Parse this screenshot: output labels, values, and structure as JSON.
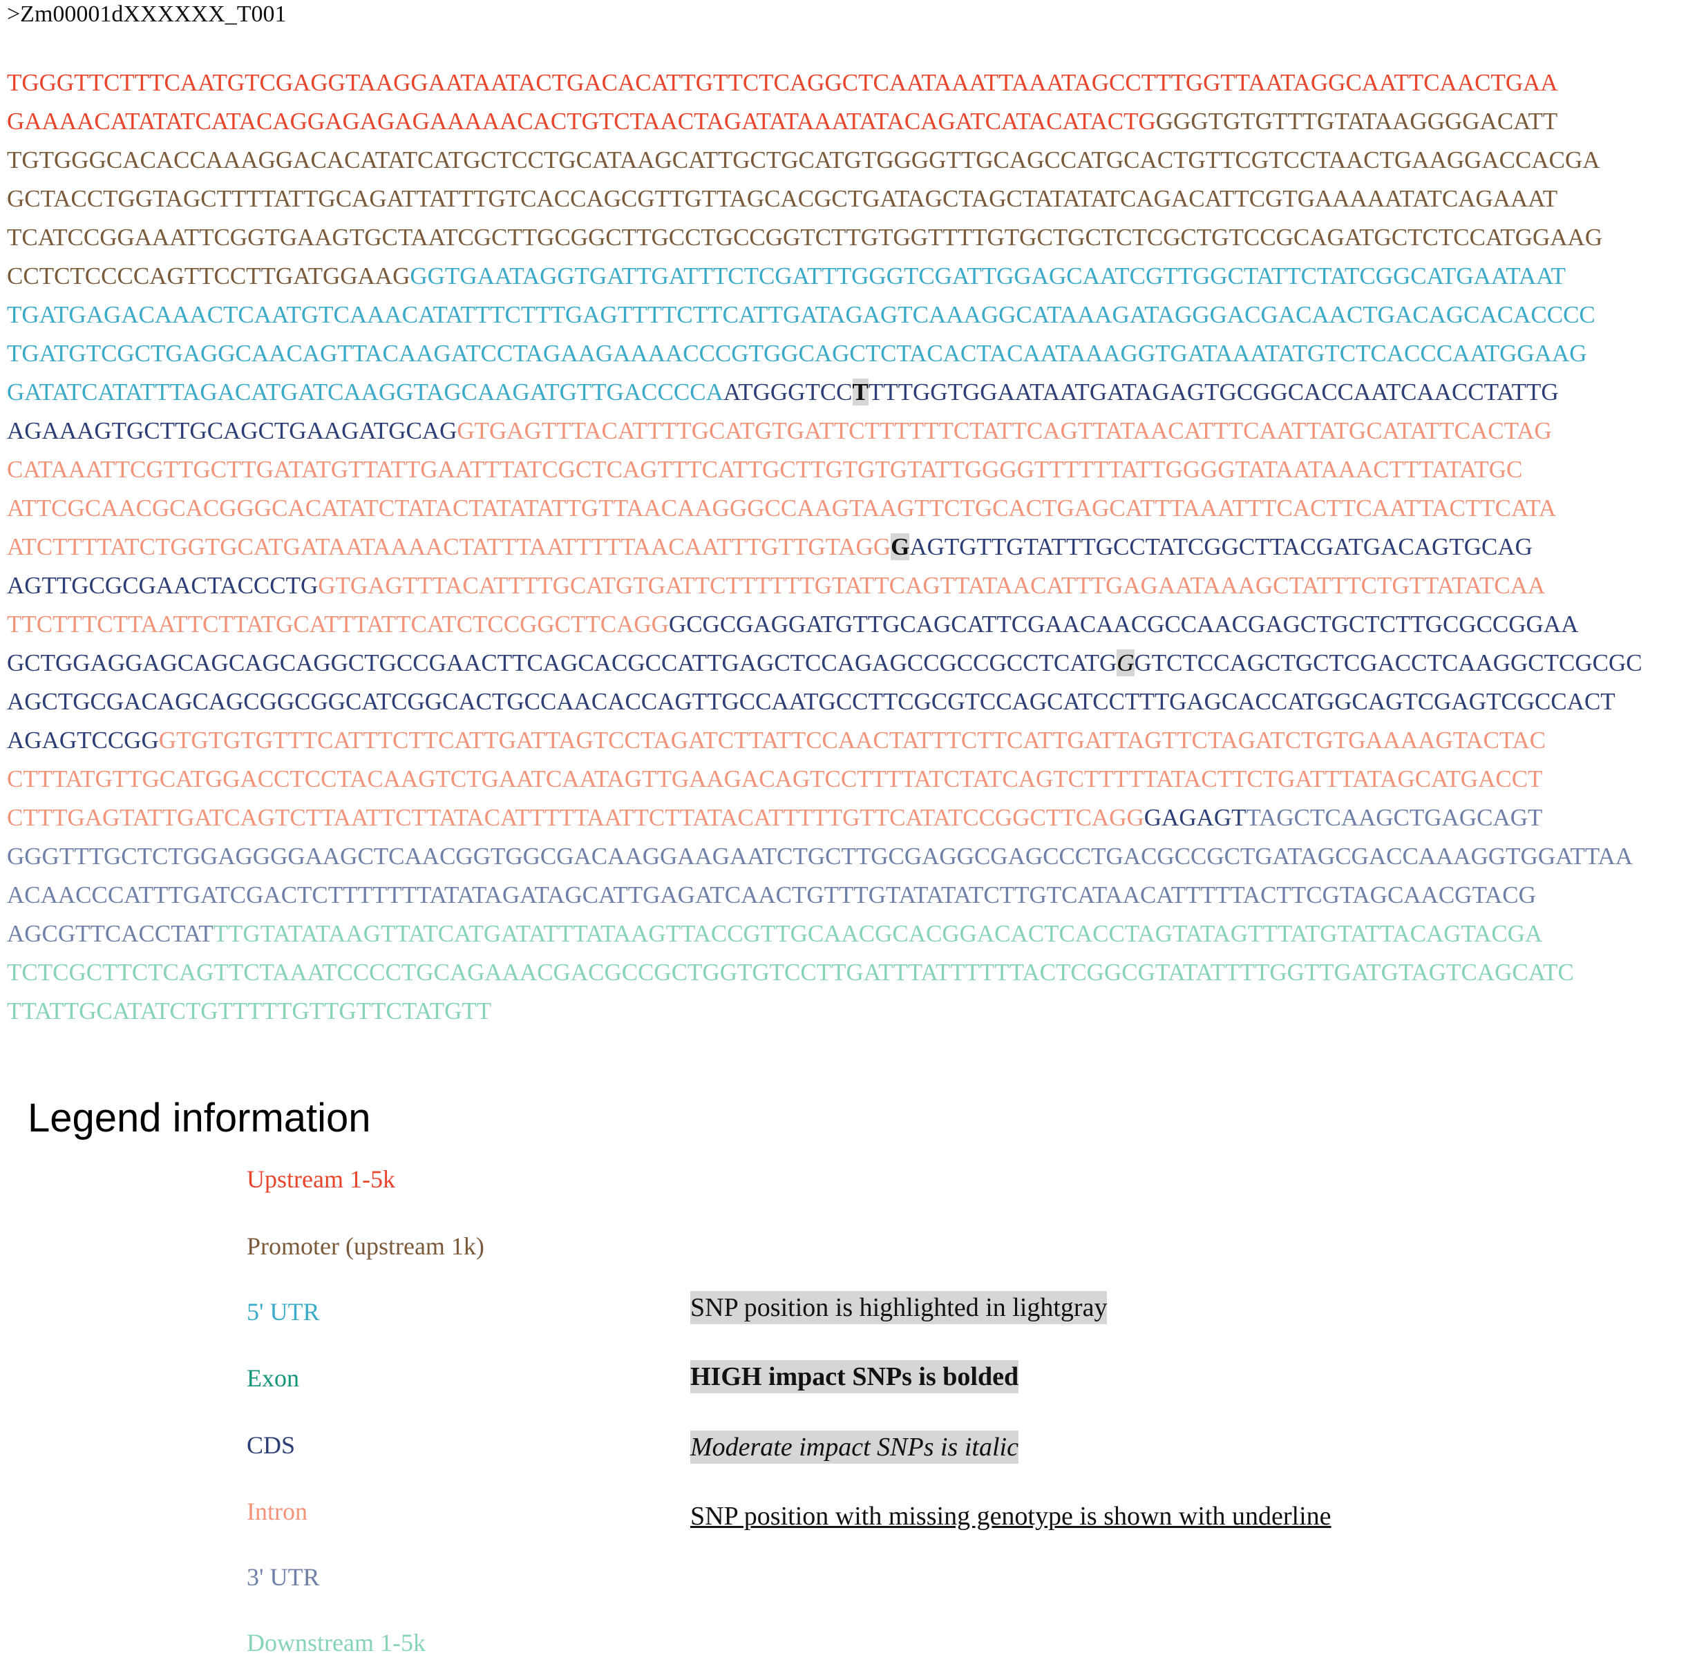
{
  "header": {
    "title": ">Zm00001dXXXXXX_T001"
  },
  "sequence": {
    "lines": [
      [
        {
          "text": "TGGGTTCTTTCAATGTCGAGGTAAGGAATAATACTGACACATTGTTCTCAGGCTCAATAAATTAAATAGCCTTTGGTTAATAGGCAATTCAACTGAA",
          "color": "#e8452c"
        }
      ],
      [
        {
          "text": "GAAAACATATATCATACAGGAGAGAGAAAAACACTGTCTAACTAGATATAAATATACAGATCATACATACTG",
          "color": "#e8452c"
        },
        {
          "text": "GGGTGTGTTTGTATAAGGGGACATT",
          "color": "#7a5a3a"
        }
      ],
      [
        {
          "text": "TGTGGGCACACCAAAGGACACATATCATGCTCCTGCATAAGCATTGCTGCATGTGGGGTTGCAGCCATGCACTGTTCGTCCTAACTGAAGGACCACGA",
          "color": "#7a5a3a"
        }
      ],
      [
        {
          "text": "GCTACCTGGTAGCTTTTATTGCAGATTATTTGTCACCAGCGTTGTTAGCACGCTGATAGCTAGCTATATATCAGACATTCGTGAAAAATATCAGAAAT",
          "color": "#7a5a3a"
        }
      ],
      [
        {
          "text": "TCATCCGGAAATTCGGTGAAGTGCTAATCGCTTGCGGCTTGCCTGCCGGTCTTGTGGTTTTGTGCTGCTCTCGCTGTCCGCAGATGCTCTCCATGGAAG",
          "color": "#7a5a3a"
        }
      ],
      [
        {
          "text": "CCTCTCCCCAGTTCCTTGATGGAAG",
          "color": "#7a5a3a"
        },
        {
          "text": "GGTGAATAGGTGATTGATTTCTCGATTTGGGTCGATTGGAGCAATCGTTGGCTATTCTATCGGCATGAATAAT",
          "color": "#3aaac8"
        }
      ],
      [
        {
          "text": "TGATGAGACAAACTCAATGTCAAACATATTTCTTTGAGTTTTCTTCATTGATAGAGTCAAAGGCATAAAGATAGGGACGACAACTGACAGCACACCCC",
          "color": "#3aaac8"
        }
      ],
      [
        {
          "text": "TGATGTCGCTGAGGCAACAGTTACAAGATCCTAGAAGAAAACCCGTGGCAGCTCTACACTACAATAAAGGTGATAAATATGTCTCACCCAATGGAAG",
          "color": "#3aaac8"
        }
      ],
      [
        {
          "text": "GATATCATATTTAGACATGATCAAGGTAGCAAGATGTTGACCCCA",
          "color": "#3aaac8"
        },
        {
          "text": "ATGGGTCC",
          "color": "#2c3e75"
        },
        {
          "text": "T",
          "color": "#111111",
          "highlight": true,
          "bold": true
        },
        {
          "text": "TTTGGTGGAATAATGATAGAGTGCGGCACCAATCAACCTATTG",
          "color": "#2c3e75"
        }
      ],
      [
        {
          "text": "AGAAAGTGCTTGCAGCTGAAGATGCAG",
          "color": "#2c3e75"
        },
        {
          "text": "GTGAGTTTACATTTTGCATGTGATTCTTTTTTCTATTCAGTTATAACATTTCAATTATGCATATTCACTAG",
          "color": "#f2937a"
        }
      ],
      [
        {
          "text": "CATAAATTCGTTGCTTGATATGTTATTGAATTTATCGCTCAGTTTCATTGCTTGTGTGTATTGGGGTTTTTTATTGGGGTATAATAAACTTTATATGC",
          "color": "#f2937a"
        }
      ],
      [
        {
          "text": "ATTCGCAACGCACGGGCACATATCTATACTATATATTGTTAACAAGGGCCAAGTAAGTTCTGCACTGAGCATTTAAATTTCACTTCAATTACTTCATA",
          "color": "#f2937a"
        }
      ],
      [
        {
          "text": "ATCTTTTATCTGGTGCATGATAATAAAACTATTTAATTTTTAACAATTTGTTGTAGG",
          "color": "#f2937a"
        },
        {
          "text": "G",
          "color": "#111111",
          "highlight": true,
          "bold": true
        },
        {
          "text": "AGTGTTGTATTTGCCTATCGGCTTACGATGACAGTGCAG",
          "color": "#2c3e75"
        }
      ],
      [
        {
          "text": "AGTTGCGCGAACTACCCTG",
          "color": "#2c3e75"
        },
        {
          "text": "GTGAGTTTACATTTTGCATGTGATTCTTTTTTGTATTCAGTTATAACATTTGAGAATAAAGCTATTTCTGTTATATCAA",
          "color": "#f2937a"
        }
      ],
      [
        {
          "text": "TTCTTTCTTAATTCTTATGCATTTATTCATCTCCGGCTTCAGG",
          "color": "#f2937a"
        },
        {
          "text": "GCGCGAGGATGTTGCAGCATTCGAACAACGCCAACGAGCTGCTCTTGCGCCGGAA",
          "color": "#2c3e75"
        }
      ],
      [
        {
          "text": "GCTGGAGGAGCAGCAGCAGGCTGCCGAACTTCAGCACGCCATTGAGCTCCAGAGCCGCCGCCTCATG",
          "color": "#2c3e75"
        },
        {
          "text": "G",
          "color": "#111111",
          "highlight": true,
          "italic": true
        },
        {
          "text": "GTCTCCAGCTGCTCGACCTCAAGGCTCGCGC",
          "color": "#2c3e75"
        }
      ],
      [
        {
          "text": "AGCTGCGACAGCAGCGGCGGCATCGGCACTGCCAACACCAGTTGCCAATGCCTTCGCGTCCAGCATCCTTTGAGCACCATGGCAGTCGAGTCGCCACT",
          "color": "#2c3e75"
        }
      ],
      [
        {
          "text": "AGAGTCCGG",
          "color": "#2c3e75"
        },
        {
          "text": "GTGTGTGTTTCATTTCTTCATTGATTAGTCCTAGATCTTATTCCAACTATTTCTTCATTGATTAGTTCTAGATCTGTGAAAAGTACTAC",
          "color": "#f2937a"
        }
      ],
      [
        {
          "text": "CTTTATGTTGCATGGACCTCCTACAAGTCTGAATCAATAGTTGAAGACAGTCCTTTTATCTATCAGTCTTTTTATACTTCTGATTTATAGCATGACCT",
          "color": "#f2937a"
        }
      ],
      [
        {
          "text": "CTTTGAGTATTGATCAGTCTTAATTCTTATACATTTTTAATTCTTATACATTTTTGTTCATATCCGGCTTCAGG",
          "color": "#f2937a"
        },
        {
          "text": "GAGAGT",
          "color": "#2c3e75"
        },
        {
          "text": "TAGCTCAAGCTGAGCAGT",
          "color": "#6f80a8"
        }
      ],
      [
        {
          "text": "GGGTTTGCTCTGGAGGGGAAGCTCAACGGTGGCGACAAGGAAGAATCTGCTTGCGAGGCGAGCCCTGACGCCGCTGATAGCGACCAAAGGTGGATTAA",
          "color": "#6f80a8"
        }
      ],
      [
        {
          "text": "ACAACCCATTTGATCGACTCTTTTTTTATATAGATAGCATTGAGATCAACTGTTTGTATATATCTTGTCATAACATTTTTACTTCGTAGCAACGTACG",
          "color": "#6f80a8"
        }
      ],
      [
        {
          "text": "AGCGTTCACCTAT",
          "color": "#6f80a8"
        },
        {
          "text": "TTGTATATAAGTTATCATGATATTTATAAGTTACCGTTGCAACGCACGGACACTCACCTAGTATAGTTTATGTATTACAGTACGA",
          "color": "#86d3b6"
        }
      ],
      [
        {
          "text": "TCTCGCTTCTCAGTTCTAAATCCCCTGCAGAAACGACGCCGCTGGTGTCCTTGATTTATTTTTTACTCGGCGTATATTTTGGTTGATGTAGTCAGCATC",
          "color": "#86d3b6"
        }
      ],
      [
        {
          "text": "TTATTGCATATCTGTTTTTGTTGTTCTATGTT",
          "color": "#86d3b6"
        }
      ]
    ]
  },
  "legend": {
    "title": "Legend information",
    "features": [
      {
        "label": "Upstream 1-5k",
        "color": "#e8452c"
      },
      {
        "label": "Promoter (upstream 1k)",
        "color": "#7a5a3a"
      },
      {
        "label": "5' UTR",
        "color": "#3aaac8"
      },
      {
        "label": "Exon",
        "color": "#14957a"
      },
      {
        "label": "CDS",
        "color": "#2c3e75"
      },
      {
        "label": "Intron",
        "color": "#f2937a"
      },
      {
        "label": "3' UTR",
        "color": "#6f80a8"
      },
      {
        "label": "Downstream 1-5k",
        "color": "#86d3b6"
      }
    ],
    "notes": [
      {
        "text": "SNP position is highlighted in lightgray",
        "highlight": true
      },
      {
        "text": "HIGH impact SNPs is bolded",
        "highlight": true,
        "bold": true
      },
      {
        "text": "Moderate impact SNPs is italic",
        "highlight": true,
        "italic": true
      },
      {
        "text": "SNP position with missing genotype is shown with underline",
        "underline": true
      }
    ]
  }
}
